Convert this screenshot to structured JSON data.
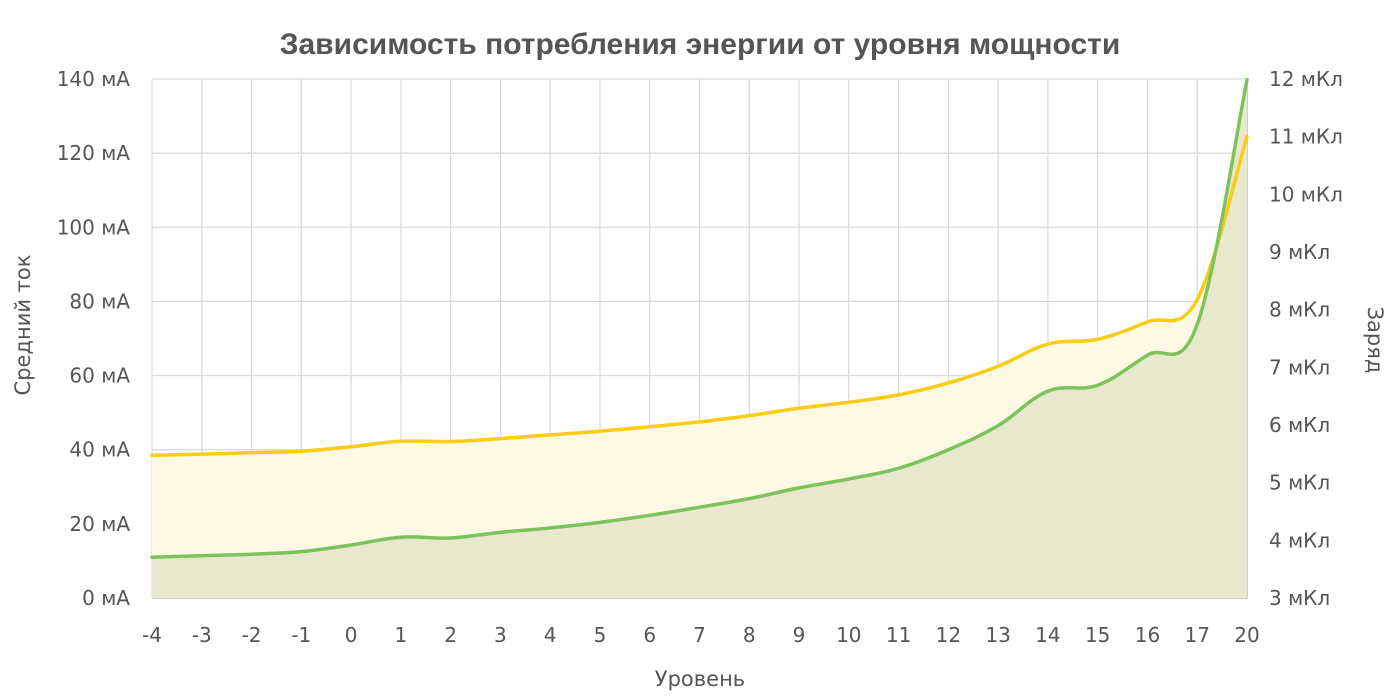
{
  "chart_data": {
    "type": "area",
    "title": "Зависимость потребления энергии от уровня мощности",
    "xlabel": "Уровень",
    "ylabel_left": "Средний ток",
    "ylabel_right": "Заряд",
    "x": [
      -4,
      -3,
      -2,
      -1,
      0,
      1,
      2,
      3,
      4,
      5,
      6,
      7,
      8,
      9,
      10,
      11,
      12,
      13,
      14,
      15,
      16,
      17,
      20
    ],
    "x_tick_labels": [
      "-4",
      "-3",
      "-2",
      "-1",
      "0",
      "1",
      "2",
      "3",
      "4",
      "5",
      "6",
      "7",
      "8",
      "9",
      "10",
      "11",
      "12",
      "13",
      "14",
      "15",
      "16",
      "17",
      "20"
    ],
    "ylim_left": [
      0,
      140
    ],
    "ylim_right": [
      3,
      12
    ],
    "y_left_ticks": [
      0,
      20,
      40,
      60,
      80,
      100,
      120,
      140
    ],
    "y_left_tick_labels": [
      "0 мА",
      "20 мА",
      "40 мА",
      "60 мА",
      "80 мА",
      "100 мА",
      "120 мА",
      "140 мА"
    ],
    "y_right_ticks": [
      3,
      4,
      5,
      6,
      7,
      8,
      9,
      10,
      11,
      12
    ],
    "y_right_tick_labels": [
      "3 мКл",
      "4 мКл",
      "5 мКл",
      "6 мКл",
      "7 мКл",
      "8 мКл",
      "9 мКл",
      "10 мКл",
      "11 мКл",
      "12 мКл"
    ],
    "grid": true,
    "series": [
      {
        "axis": "left",
        "color": "#facc15",
        "fill": "#fef9e3",
        "values": [
          38.5,
          38.8,
          39.2,
          39.6,
          40.8,
          42.3,
          42.2,
          43.0,
          44.0,
          45.0,
          46.2,
          47.5,
          49.2,
          51.2,
          52.8,
          54.8,
          58.0,
          62.5,
          68.5,
          69.8,
          74.5,
          80.5,
          124.5
        ]
      },
      {
        "axis": "left",
        "color": "#7dc35b",
        "fill": "#e8e8ce",
        "values": [
          11.0,
          11.4,
          11.8,
          12.5,
          14.3,
          16.4,
          16.2,
          17.7,
          18.9,
          20.4,
          22.3,
          24.5,
          26.8,
          29.7,
          32.1,
          35.0,
          40.0,
          46.5,
          55.8,
          57.4,
          65.5,
          73.8,
          139.8
        ]
      }
    ]
  }
}
